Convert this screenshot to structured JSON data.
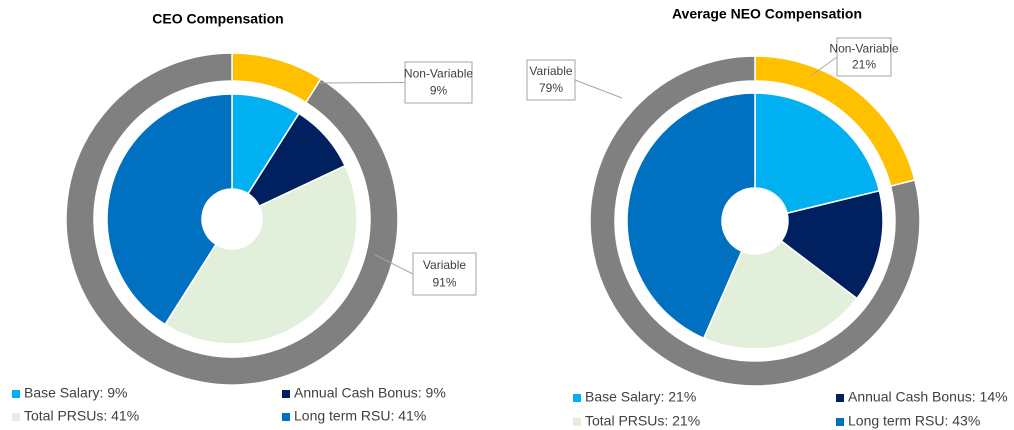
{
  "chart_data": [
    {
      "type": "pie",
      "title": "CEO Compensation",
      "inner": {
        "labels": [
          "Base Salary: 9%",
          "Annual Cash Bonus: 9%",
          "Total PRSUs: 41%",
          "Long term RSU: 41%"
        ],
        "values": [
          9,
          9,
          41,
          41
        ],
        "colors": [
          "#00b0f0",
          "#002060",
          "#e2efda",
          "#0070c0"
        ]
      },
      "outer": {
        "categories": [
          "Non-Variable",
          "Variable"
        ],
        "values": [
          9,
          91
        ],
        "value_labels": [
          "9%",
          "91%"
        ],
        "colors": [
          "#ffc000",
          "#808080"
        ]
      }
    },
    {
      "type": "pie",
      "title": "Average NEO Compensation",
      "inner": {
        "labels": [
          "Base Salary: 21%",
          "Annual Cash Bonus: 14%",
          "Total PRSUs: 21%",
          "Long term RSU: 43%"
        ],
        "values": [
          21,
          14,
          21,
          43
        ],
        "colors": [
          "#00b0f0",
          "#002060",
          "#e2efda",
          "#0070c0"
        ]
      },
      "outer": {
        "categories": [
          "Non-Variable",
          "Variable"
        ],
        "values": [
          21,
          79
        ],
        "value_labels": [
          "21%",
          "79%"
        ],
        "colors": [
          "#ffc000",
          "#808080"
        ]
      }
    }
  ]
}
